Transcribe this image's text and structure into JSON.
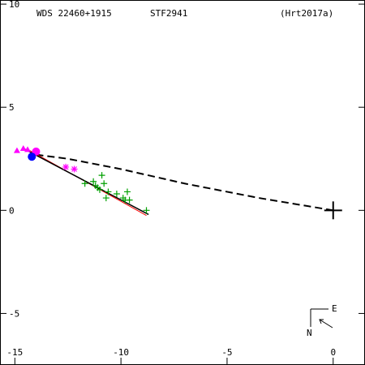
{
  "header": {
    "wds": "WDS 22460+1915",
    "name": "STF2941",
    "ref": "(Hrt2017a)"
  },
  "chart_data": {
    "type": "scatter",
    "xlim": [
      -15.7,
      1.5
    ],
    "ylim": [
      -7.5,
      10.2
    ],
    "x_ticks": [
      {
        "value": -15,
        "label": "-15"
      },
      {
        "value": -10,
        "label": "-10"
      },
      {
        "value": -5,
        "label": "-5"
      },
      {
        "value": 0,
        "label": "0"
      }
    ],
    "y_ticks": [
      {
        "value": 10,
        "label": "10"
      },
      {
        "value": 5,
        "label": "5"
      },
      {
        "value": 0,
        "label": "0"
      },
      {
        "value": -5,
        "label": "-5"
      }
    ],
    "primary": {
      "x": 0,
      "y": 0
    },
    "orbit_line": {
      "x1": -14.6,
      "y1": 3.0,
      "x2": -8.7,
      "y2": -0.2
    },
    "fit_line": {
      "x1": -14.3,
      "y1": 2.9,
      "x2": -8.8,
      "y2": -0.25
    },
    "connector": [
      [
        -14.0,
        2.7
      ],
      [
        -12.5,
        2.5
      ],
      [
        -10.0,
        2.0
      ],
      [
        -7.0,
        1.3
      ],
      [
        -3.5,
        0.6
      ],
      [
        0,
        0
      ]
    ],
    "observations_plus": [
      [
        -11.7,
        1.3
      ],
      [
        -11.2,
        1.2
      ],
      [
        -10.9,
        1.7
      ],
      [
        -11.0,
        1.0
      ],
      [
        -10.6,
        0.9
      ],
      [
        -10.7,
        0.6
      ],
      [
        -9.8,
        0.5
      ],
      [
        -9.6,
        0.5
      ],
      [
        -11.3,
        1.4
      ],
      [
        -11.1,
        1.1
      ],
      [
        -8.8,
        0.0
      ],
      [
        -10.2,
        0.8
      ],
      [
        -9.9,
        0.6
      ],
      [
        -10.8,
        1.3
      ],
      [
        -9.7,
        0.9
      ]
    ],
    "observations_star": [
      [
        -12.6,
        2.1
      ],
      [
        -12.2,
        2.0
      ]
    ],
    "observations_triangle": [
      [
        -14.9,
        2.9
      ],
      [
        -14.6,
        3.0
      ],
      [
        -14.4,
        2.95
      ]
    ],
    "observations_dot": [
      [
        -14.0,
        2.85
      ],
      [
        -14.2,
        2.6
      ]
    ],
    "colors": {
      "axis": "#000000",
      "plus": "#00a000",
      "star": "#ff00ff",
      "triangle": "#ff00ff",
      "magenta_dot": "#ff00ff",
      "blue_dot": "#0000ff",
      "fit_line": "#ff0000",
      "orbit_line": "#000000"
    }
  },
  "compass": {
    "east_label": "E",
    "north_label": "N"
  }
}
